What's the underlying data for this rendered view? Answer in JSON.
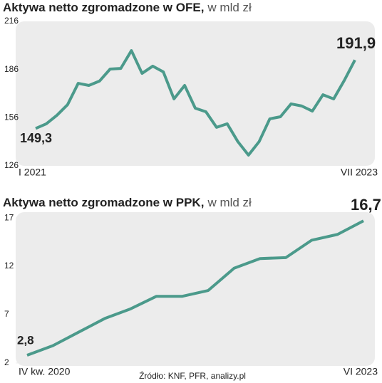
{
  "chart_data": [
    {
      "type": "line",
      "title": "Aktywa netto zgromadzone w OFE,",
      "subtitle": "w mld zł",
      "categories": [
        "I 2021",
        null,
        null,
        null,
        null,
        null,
        null,
        null,
        null,
        null,
        null,
        null,
        null,
        null,
        null,
        null,
        null,
        null,
        null,
        null,
        null,
        null,
        null,
        null,
        null,
        null,
        null,
        null,
        null,
        null,
        "VII 2023"
      ],
      "series": [
        {
          "name": "OFE",
          "color": "#4b9a8b",
          "values": [
            149.3,
            152.2,
            157.5,
            164.1,
            177.4,
            176.1,
            178.8,
            186.3,
            186.7,
            197.8,
            183.6,
            188.1,
            184.5,
            167.7,
            176.1,
            161.9,
            159.7,
            150.0,
            152.2,
            141.1,
            132.7,
            141.1,
            155.3,
            156.6,
            164.6,
            163.3,
            160.1,
            170.3,
            167.7,
            179.2,
            191.9
          ],
          "value_labels": [
            "149,3",
            null,
            null,
            null,
            null,
            null,
            null,
            null,
            null,
            null,
            null,
            null,
            null,
            null,
            null,
            null,
            null,
            null,
            null,
            null,
            null,
            null,
            null,
            null,
            null,
            null,
            null,
            null,
            null,
            null,
            "191,9"
          ]
        }
      ],
      "ylim": [
        126,
        216
      ],
      "yticks": [
        126,
        156,
        186,
        216
      ]
    },
    {
      "type": "line",
      "title": "Aktywa netto zgromadzone w PPK,",
      "subtitle": "w mld zł",
      "categories": [
        "IV kw. 2020",
        null,
        null,
        null,
        null,
        null,
        null,
        null,
        null,
        null,
        null,
        null,
        null,
        "VI 2023"
      ],
      "series": [
        {
          "name": "PPK",
          "color": "#4b9a8b",
          "values": [
            2.8,
            3.8,
            5.2,
            6.6,
            7.6,
            8.9,
            8.9,
            9.5,
            11.8,
            12.8,
            12.9,
            14.7,
            15.3,
            16.7
          ],
          "value_labels": [
            "2,8",
            null,
            null,
            null,
            null,
            null,
            null,
            null,
            null,
            null,
            null,
            null,
            null,
            "16,7"
          ]
        }
      ],
      "ylim": [
        1.7,
        17.6
      ],
      "yticks": [
        2,
        7,
        12,
        17
      ],
      "source": "Źródło: KNF, PFR, analizy.pl"
    }
  ]
}
